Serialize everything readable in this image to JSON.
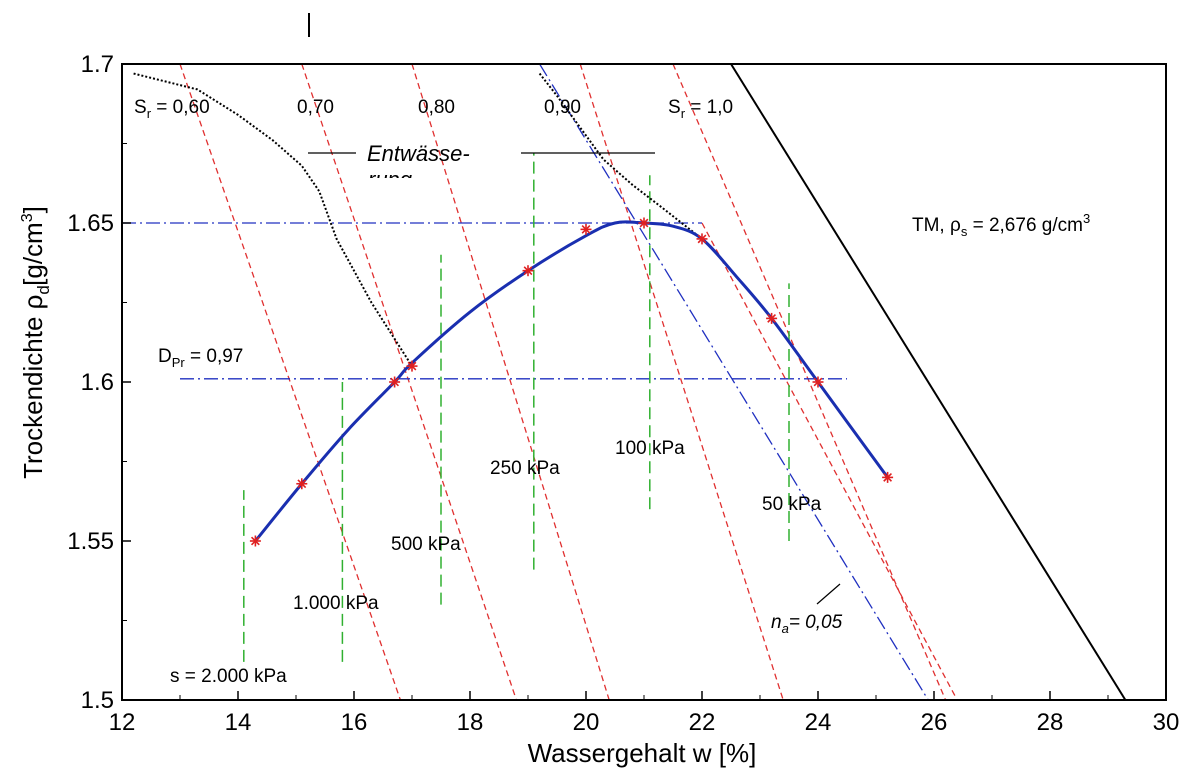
{
  "chart_data": {
    "type": "line",
    "xlabel": "Wassergehalt  w  [%]",
    "ylabel_main": "Trockendichte ",
    "ylabel_symbol": "ρ",
    "ylabel_subscript": "d",
    "ylabel_unit": "[g/cm",
    "ylabel_unit_sup": "3",
    "ylabel_unit_close": "]",
    "xlim": [
      12,
      30
    ],
    "ylim": [
      1.5,
      1.7
    ],
    "x_ticks": [
      "12",
      "14",
      "16",
      "18",
      "20",
      "22",
      "24",
      "26",
      "28",
      "30"
    ],
    "y_ticks": [
      "1.5",
      "1.55",
      "1.6",
      "1.65",
      "1.7"
    ],
    "x_tick_values": [
      12,
      14,
      16,
      18,
      20,
      22,
      24,
      26,
      28,
      30
    ],
    "y_tick_values": [
      1.5,
      1.55,
      1.6,
      1.65,
      1.7
    ],
    "colors": {
      "compaction_curve": "#1a2fb0",
      "markers": "#e02020",
      "saturation_lines": "#e03030",
      "suction_lines": "#30b030",
      "reference_lines": "#2030c0",
      "sr1_line": "#000000",
      "drying_paths": "#000000"
    },
    "compaction_points": {
      "x": [
        14.3,
        15.1,
        16.7,
        17.0,
        19.0,
        20.0,
        21.0,
        22.0,
        23.2,
        24.0,
        25.2
      ],
      "y": [
        1.55,
        1.568,
        1.6,
        1.605,
        1.635,
        1.648,
        1.65,
        1.645,
        1.62,
        1.6,
        1.57
      ]
    },
    "compaction_curve": {
      "x": [
        14.3,
        15.1,
        15.9,
        16.7,
        17.0,
        18.0,
        19.0,
        20.0,
        20.5,
        21.0,
        21.5,
        22.0,
        22.6,
        23.2,
        24.0,
        25.2
      ],
      "y": [
        1.55,
        1.568,
        1.585,
        1.6,
        1.606,
        1.622,
        1.635,
        1.646,
        1.65,
        1.65,
        1.649,
        1.645,
        1.633,
        1.62,
        1.6,
        1.57
      ]
    },
    "saturation_lines": [
      {
        "label": "0,60",
        "x1": 13.0,
        "y1": 1.7,
        "x2": 16.8,
        "y2": 1.5
      },
      {
        "label": "0,70",
        "x1": 15.1,
        "y1": 1.7,
        "x2": 18.8,
        "y2": 1.5
      },
      {
        "label": "0,80",
        "x1": 17.0,
        "y1": 1.7,
        "x2": 20.4,
        "y2": 1.5
      },
      {
        "label": "0,90",
        "x1": 19.9,
        "y1": 1.7,
        "x2": 23.4,
        "y2": 1.5
      },
      {
        "label": "",
        "x1": 21.5,
        "y1": 1.7,
        "x2": 26.2,
        "y2": 1.5
      },
      {
        "label": "",
        "x1": 22.0,
        "y1": 1.65,
        "x2": 26.4,
        "y2": 1.5
      }
    ],
    "sr1_line": {
      "x1": 22.5,
      "y1": 1.7,
      "x2": 29.3,
      "y2": 1.5
    },
    "air_void_line": {
      "x1": 19.2,
      "y1": 1.7,
      "x2": 25.9,
      "y2": 1.5
    },
    "suction_lines": [
      {
        "x": 14.1,
        "y1": 1.512,
        "y2": 1.566,
        "label": "s = 2.000 kPa"
      },
      {
        "x": 15.8,
        "y1": 1.512,
        "y2": 1.6,
        "label": "1.000 kPa"
      },
      {
        "x": 17.5,
        "y1": 1.53,
        "y2": 1.64,
        "label": "500 kPa"
      },
      {
        "x": 19.1,
        "y1": 1.541,
        "y2": 1.672,
        "label": "250 kPa"
      },
      {
        "x": 21.1,
        "y1": 1.56,
        "y2": 1.665,
        "label": "100 kPa"
      },
      {
        "x": 23.5,
        "y1": 1.55,
        "y2": 1.631,
        "label": "50 kPa"
      }
    ],
    "reference_lines": [
      {
        "y": 1.65,
        "x1": 12.0,
        "x2": 22.0
      },
      {
        "y": 1.601,
        "x1": 13.0,
        "x2": 24.5
      }
    ],
    "drying_paths": [
      {
        "x": [
          12.2,
          13.3,
          14.0,
          14.6,
          15.1,
          15.4,
          15.7,
          16.3,
          17.0
        ],
        "y": [
          1.697,
          1.692,
          1.684,
          1.676,
          1.668,
          1.66,
          1.645,
          1.625,
          1.605
        ]
      },
      {
        "x": [
          19.2,
          19.5,
          19.9,
          20.3,
          20.8,
          21.3,
          22.0
        ],
        "y": [
          1.697,
          1.69,
          1.68,
          1.67,
          1.662,
          1.655,
          1.645
        ]
      }
    ],
    "annotations": {
      "sr060_prefix": "S",
      "sr060_sub": "r",
      "sr060_value": " = 0,60",
      "sr070": "0,70",
      "sr080": "0,80",
      "sr090": "0,90",
      "sr10_prefix": "S",
      "sr10_sub": "r",
      "sr10_value": " = 1,0",
      "drainage": "Entwässe-",
      "drainage_cont": "rung",
      "material_prefix": "TM,  ",
      "material_symbol": "ρ",
      "material_sub": "s",
      "material_value": " = 2,676 g/cm",
      "material_sup": "3",
      "proctor_prefix": "D",
      "proctor_sub": "Pr",
      "proctor_value": " = 0,97",
      "air_void_prefix": "n",
      "air_void_sub": "a",
      "air_void_value": "= 0,05"
    }
  }
}
